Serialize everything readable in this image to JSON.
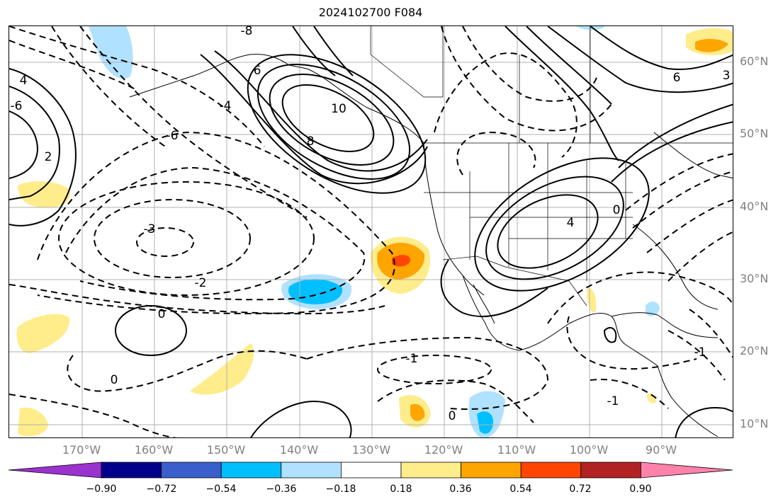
{
  "title": "2024102700 F084",
  "latitude_labels": [
    "60°N",
    "50°N",
    "40°N",
    "30°N",
    "20°N",
    "10°N"
  ],
  "longitude_labels": [
    "170°W",
    "160°W",
    "150°W",
    "140°W",
    "130°W",
    "120°W",
    "110°W",
    "100°W",
    "90°W"
  ],
  "contour_labels": [
    "10",
    "8",
    "6",
    "6",
    "4",
    "4",
    "3",
    "2",
    "0",
    "0",
    "0",
    "0",
    "-1",
    "-1",
    "-1",
    "-2",
    "-3",
    "-4",
    "-6",
    "-6",
    "-8"
  ],
  "colorbar": {
    "tick_labels": [
      "−0.90",
      "−0.72",
      "−0.54",
      "−0.36",
      "−0.18",
      "0.18",
      "0.36",
      "0.54",
      "0.72",
      "0.90"
    ],
    "colors": [
      "#9a32cd",
      "#00008b",
      "#3a5fcd",
      "#00bfff",
      "#b0e2ff",
      "#ffffff",
      "#ffec8b",
      "#ffa500",
      "#ff4500",
      "#b22222",
      "#ff82ab"
    ]
  },
  "shading_colors": {
    "light_yellow": "#ffec8b",
    "orange": "#ffa500",
    "red_orange": "#ff4500",
    "light_blue": "#b0e2ff",
    "deep_sky_blue": "#00bfff"
  }
}
